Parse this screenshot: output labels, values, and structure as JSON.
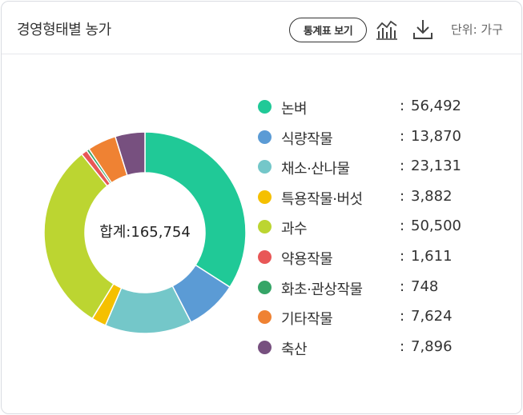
{
  "header": {
    "title": "경영형태별 농가",
    "stats_button": "통계표 보기",
    "unit_label": "단위: 가구"
  },
  "icons": {
    "chart": "line-bar-chart-icon",
    "download": "download-icon"
  },
  "chart_data": {
    "type": "pie",
    "donut": true,
    "center_label": "합계:165,754",
    "total": 165754,
    "legend_position": "right",
    "slices": [
      {
        "name": "논벼",
        "value": 56492,
        "display": "56,492",
        "color": "#20c997"
      },
      {
        "name": "식량작물",
        "value": 13870,
        "display": "13,870",
        "color": "#5b9bd5"
      },
      {
        "name": "채소·산나물",
        "value": 23131,
        "display": "23,131",
        "color": "#74c7c9"
      },
      {
        "name": "특용작물·버섯",
        "value": 3882,
        "display": "3,882",
        "color": "#f5c000"
      },
      {
        "name": "과수",
        "value": 50500,
        "display": "50,500",
        "color": "#bcd531"
      },
      {
        "name": "약용작물",
        "value": 1611,
        "display": "1,611",
        "color": "#e85757"
      },
      {
        "name": "화초·관상작물",
        "value": 748,
        "display": "748",
        "color": "#35a567"
      },
      {
        "name": "기타작물",
        "value": 7624,
        "display": "7,624",
        "color": "#ef8233"
      },
      {
        "name": "축산",
        "value": 7896,
        "display": "7,896",
        "color": "#77507f"
      }
    ]
  }
}
